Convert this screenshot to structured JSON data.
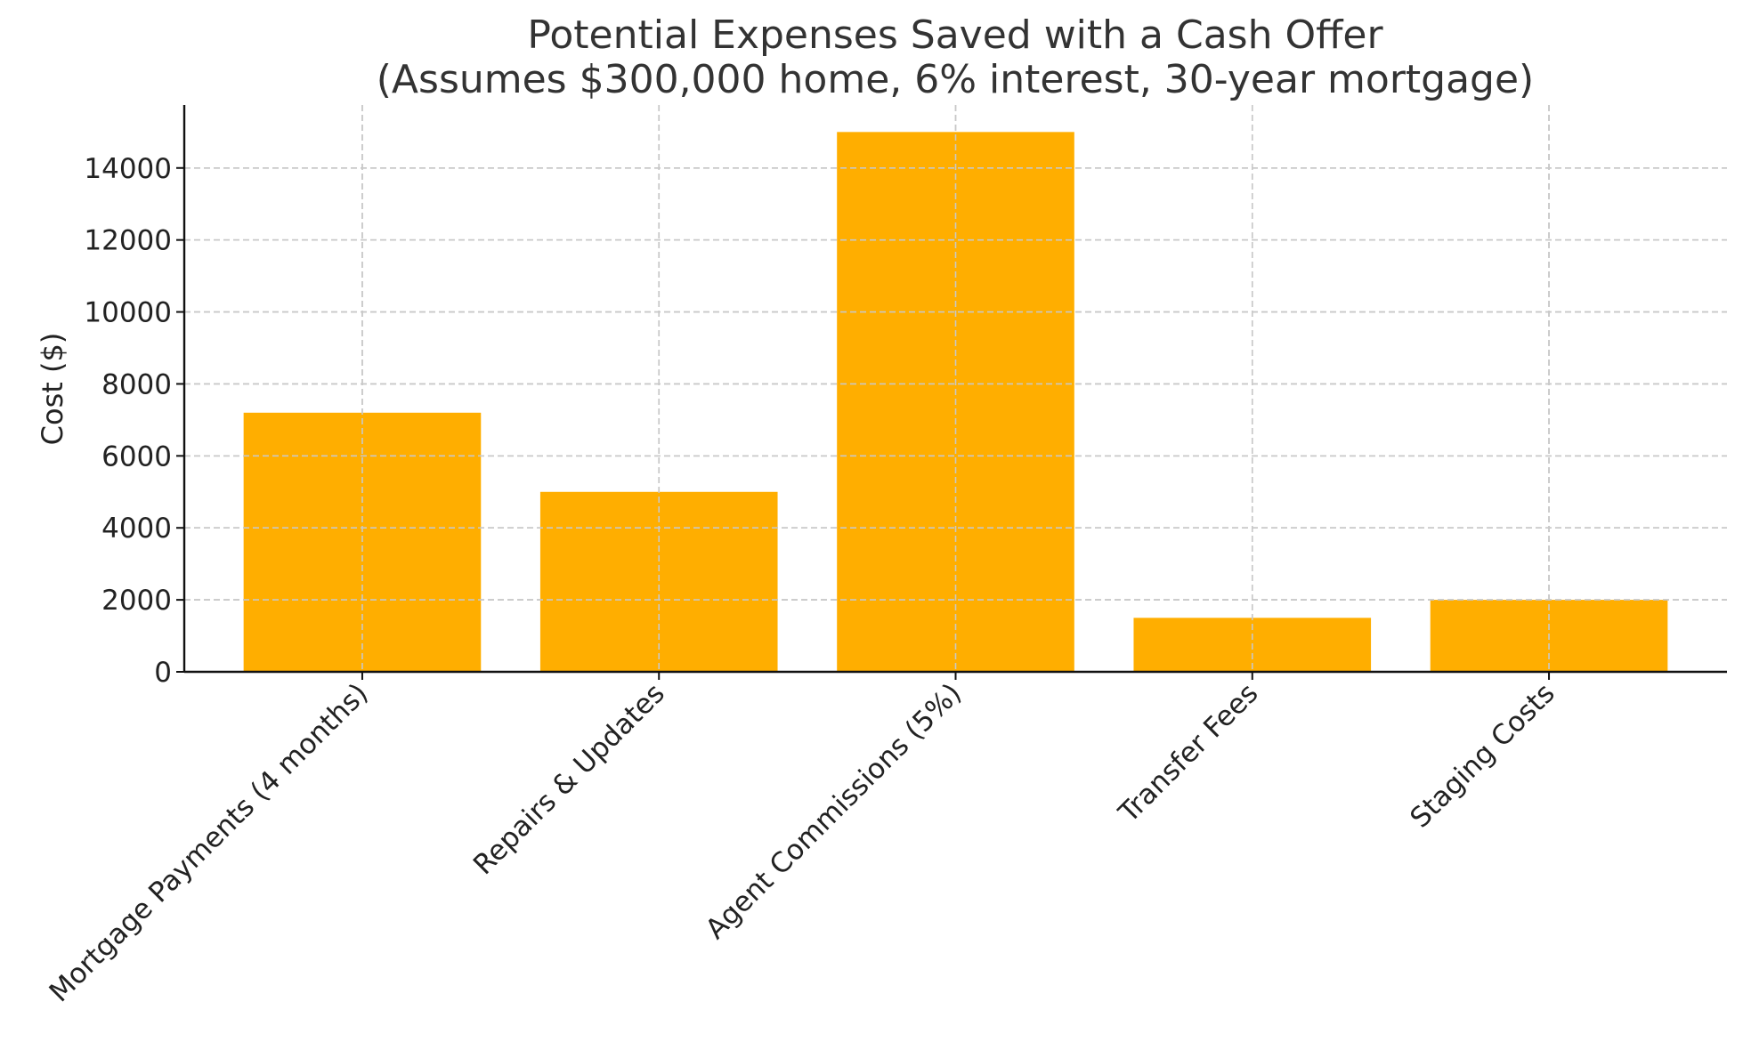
{
  "chart_data": {
    "type": "bar",
    "title": "Potential Expenses Saved with a Cash Offer",
    "subtitle": "(Assumes $300,000 home, 6% interest, 30-year mortgage)",
    "xlabel": "",
    "ylabel": "Cost ($)",
    "categories": [
      "Mortgage Payments (4 months)",
      "Repairs & Updates",
      "Agent Commissions (5%)",
      "Transfer Fees",
      "Staging Costs"
    ],
    "values": [
      7200,
      5000,
      15000,
      1500,
      2000
    ],
    "ylim": [
      0,
      15750
    ],
    "yticks": [
      0,
      2000,
      4000,
      6000,
      8000,
      10000,
      12000,
      14000
    ],
    "grid": true,
    "legend": "none",
    "bar_color": "#FFAE00"
  }
}
